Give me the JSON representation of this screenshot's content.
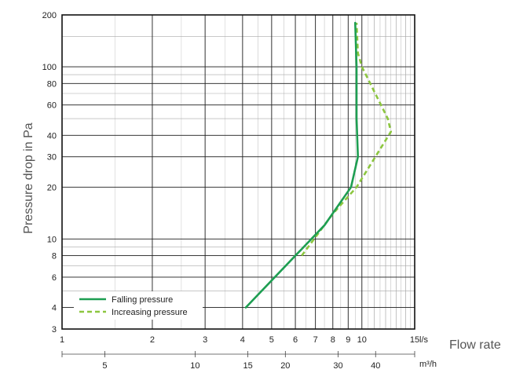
{
  "chart_data": {
    "type": "line",
    "title": "",
    "xlabel": "Flow rate",
    "ylabel": "Pressure drop in Pa",
    "x_scale": "log",
    "y_scale": "log",
    "xlim": [
      1,
      15
    ],
    "ylim": [
      3,
      200
    ],
    "x_unit": "l/s",
    "x_ticks": [
      1,
      2,
      3,
      4,
      5,
      6,
      7,
      8,
      9,
      10,
      15
    ],
    "y_ticks": [
      3,
      4,
      6,
      8,
      10,
      20,
      30,
      40,
      60,
      80,
      100,
      200
    ],
    "secondary_x_unit": "m³/h",
    "secondary_x_ticks": [
      5,
      10,
      15,
      20,
      30,
      40
    ],
    "grid": true,
    "legend_position": "bottom-left",
    "series": [
      {
        "name": "Falling pressure",
        "style": "solid",
        "color": "#1e9e52",
        "x": [
          4.1,
          6.0,
          7.5,
          9.2,
          9.7,
          9.6,
          9.6,
          9.5
        ],
        "y": [
          4,
          8,
          12,
          20,
          30,
          50,
          100,
          180
        ]
      },
      {
        "name": "Increasing pressure",
        "style": "dashed",
        "color": "#8cc63f",
        "x": [
          6.3,
          8.0,
          9.6,
          12.5,
          12.2,
          10.0,
          9.7,
          9.6
        ],
        "y": [
          8,
          14,
          20,
          42,
          50,
          100,
          120,
          180
        ]
      }
    ]
  }
}
